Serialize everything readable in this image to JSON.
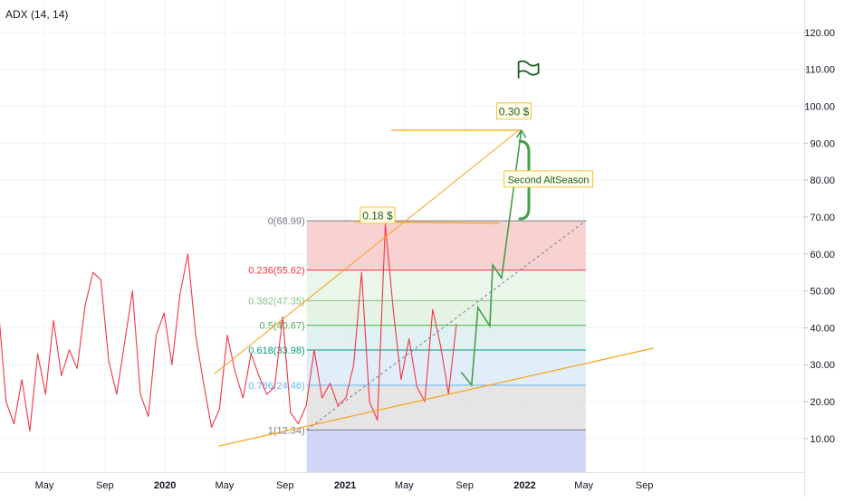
{
  "indicator": {
    "title": "ADX (14, 14)"
  },
  "chart_data": {
    "type": "line",
    "title": "ADX (14, 14)",
    "xlabel": "",
    "ylabel": "",
    "ylim": [
      0,
      125
    ],
    "grid": true,
    "y_ticks": [
      "10.00",
      "20.00",
      "30.00",
      "40.00",
      "50.00",
      "60.00",
      "70.00",
      "80.00",
      "90.00",
      "100.00",
      "110.00",
      "120.00"
    ],
    "x_ticks": [
      "May",
      "Sep",
      "2020",
      "May",
      "Sep",
      "2021",
      "May",
      "Sep",
      "2022",
      "May",
      "Sep"
    ],
    "series": [
      {
        "color": "#f23645",
        "x": [
          "2019-03",
          "2019-03",
          "2019-04",
          "2019-04",
          "2019-05",
          "2019-05",
          "2019-06",
          "2019-06",
          "2019-07",
          "2019-07",
          "2019-08",
          "2019-08",
          "2019-09",
          "2019-09",
          "2019-10",
          "2019-10",
          "2019-11",
          "2019-11",
          "2019-12",
          "2019-12",
          "2020-01",
          "2020-01",
          "2020-02",
          "2020-02",
          "2020-03",
          "2020-03",
          "2020-04",
          "2020-04",
          "2020-05",
          "2020-05",
          "2020-06",
          "2020-06",
          "2020-07",
          "2020-07",
          "2020-08",
          "2020-08",
          "2020-09",
          "2020-09",
          "2020-10",
          "2020-10",
          "2020-11",
          "2020-11",
          "2020-12",
          "2020-12",
          "2021-01",
          "2021-01",
          "2021-02",
          "2021-02",
          "2021-03",
          "2021-03",
          "2021-04",
          "2021-04",
          "2021-05",
          "2021-05",
          "2021-06",
          "2021-06",
          "2021-07",
          "2021-07",
          "2021-08"
        ],
        "y": [
          46,
          20,
          14,
          26,
          12,
          33,
          22,
          42,
          27,
          34,
          29,
          46,
          55,
          53,
          31,
          22,
          36,
          50,
          22,
          16,
          38,
          44,
          30,
          49,
          60,
          38,
          25,
          13,
          18,
          38,
          28,
          21,
          33,
          27,
          22,
          24,
          43,
          17,
          14,
          19,
          34,
          21,
          25,
          19,
          21,
          30,
          55,
          20,
          15,
          68,
          45,
          26,
          37,
          24,
          20,
          45,
          35,
          22,
          41
        ]
      }
    ],
    "fibonacci": [
      {
        "label": "0(68.99)",
        "value": 68.99,
        "color": "#787b86",
        "fill": "#f7c9c9"
      },
      {
        "label": "0.236(55.62)",
        "value": 55.62,
        "color": "#f23645",
        "fill": "#e6f4e6"
      },
      {
        "label": "0.382(47.35)",
        "value": 47.35,
        "color": "#81c784",
        "fill": "#e0f1e1"
      },
      {
        "label": "0.5(40.67)",
        "value": 40.67,
        "color": "#4caf50",
        "fill": "#dcefef"
      },
      {
        "label": "0.618(33.98)",
        "value": 33.98,
        "color": "#089981",
        "fill": "#dcebf9"
      },
      {
        "label": "0.786(24.46)",
        "value": 24.46,
        "color": "#64b5f6",
        "fill": "#e0e0e0"
      },
      {
        "label": "1(12.34)",
        "value": 12.34,
        "color": "#787b86",
        "fill": "#c9cff5"
      }
    ],
    "annotations": {
      "price_mid": "0.18 $",
      "price_target": "0.30 $",
      "callout": "Second AltSeason"
    }
  }
}
